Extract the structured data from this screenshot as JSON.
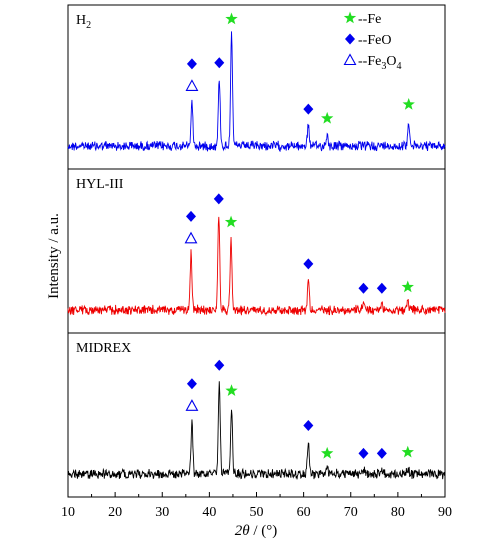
{
  "chart_data": {
    "type": "line",
    "xlabel_italic": "2θ",
    "xlabel_rest": " / (°)",
    "ylabel": "Intensity / a.u.",
    "xlim": [
      10,
      90
    ],
    "xticks": [
      10,
      20,
      30,
      40,
      50,
      60,
      70,
      80,
      90
    ],
    "legend": {
      "placement": "top-right",
      "entries": [
        {
          "marker": "star",
          "color": "#22dd22",
          "label": "--Fe"
        },
        {
          "marker": "diamond",
          "color": "#0000ee",
          "label": "--FeO"
        },
        {
          "marker": "triangle",
          "color": "#0000ee",
          "label_main": "--Fe",
          "label_sub1": "3",
          "label_mid": "O",
          "label_sub2": "4"
        }
      ]
    },
    "panels": [
      {
        "name_main": "H",
        "name_sub": "2",
        "color": "#0000ee",
        "peaks": [
          {
            "x": 36.3,
            "h": 0.38
          },
          {
            "x": 42.1,
            "h": 0.58
          },
          {
            "x": 44.7,
            "h": 1.0
          },
          {
            "x": 61.0,
            "h": 0.18
          },
          {
            "x": 65.0,
            "h": 0.1
          },
          {
            "x": 82.3,
            "h": 0.22
          }
        ],
        "markers": [
          {
            "x": 36.3,
            "type": "triangle"
          },
          {
            "x": 36.3,
            "type": "diamond"
          },
          {
            "x": 42.1,
            "type": "diamond"
          },
          {
            "x": 44.7,
            "type": "star"
          },
          {
            "x": 61.0,
            "type": "diamond"
          },
          {
            "x": 65.0,
            "type": "star"
          },
          {
            "x": 82.3,
            "type": "star"
          }
        ]
      },
      {
        "name_main": "HYL-III",
        "name_sub": "",
        "color": "#ee0000",
        "peaks": [
          {
            "x": 36.1,
            "h": 0.48
          },
          {
            "x": 42.0,
            "h": 0.82
          },
          {
            "x": 44.6,
            "h": 0.62
          },
          {
            "x": 61.0,
            "h": 0.26
          },
          {
            "x": 72.7,
            "h": 0.05
          },
          {
            "x": 76.6,
            "h": 0.05
          },
          {
            "x": 82.1,
            "h": 0.06
          }
        ],
        "markers": [
          {
            "x": 36.1,
            "type": "triangle"
          },
          {
            "x": 36.1,
            "type": "diamond"
          },
          {
            "x": 42.0,
            "type": "diamond"
          },
          {
            "x": 44.6,
            "type": "star"
          },
          {
            "x": 61.0,
            "type": "diamond"
          },
          {
            "x": 72.7,
            "type": "diamond"
          },
          {
            "x": 76.6,
            "type": "diamond"
          },
          {
            "x": 82.1,
            "type": "star"
          }
        ]
      },
      {
        "name_main": "MIDREX",
        "name_sub": "",
        "color": "#000000",
        "peaks": [
          {
            "x": 36.3,
            "h": 0.45
          },
          {
            "x": 42.1,
            "h": 0.8
          },
          {
            "x": 44.7,
            "h": 0.58
          },
          {
            "x": 61.0,
            "h": 0.28
          },
          {
            "x": 65.0,
            "h": 0.04
          },
          {
            "x": 72.7,
            "h": 0.04
          },
          {
            "x": 76.6,
            "h": 0.04
          },
          {
            "x": 82.1,
            "h": 0.05
          }
        ],
        "markers": [
          {
            "x": 36.3,
            "type": "triangle"
          },
          {
            "x": 36.3,
            "type": "diamond"
          },
          {
            "x": 42.1,
            "type": "diamond"
          },
          {
            "x": 44.7,
            "type": "star"
          },
          {
            "x": 61.0,
            "type": "diamond"
          },
          {
            "x": 65.0,
            "type": "star"
          },
          {
            "x": 72.7,
            "type": "diamond"
          },
          {
            "x": 76.6,
            "type": "diamond"
          },
          {
            "x": 82.1,
            "type": "star"
          }
        ]
      }
    ]
  }
}
